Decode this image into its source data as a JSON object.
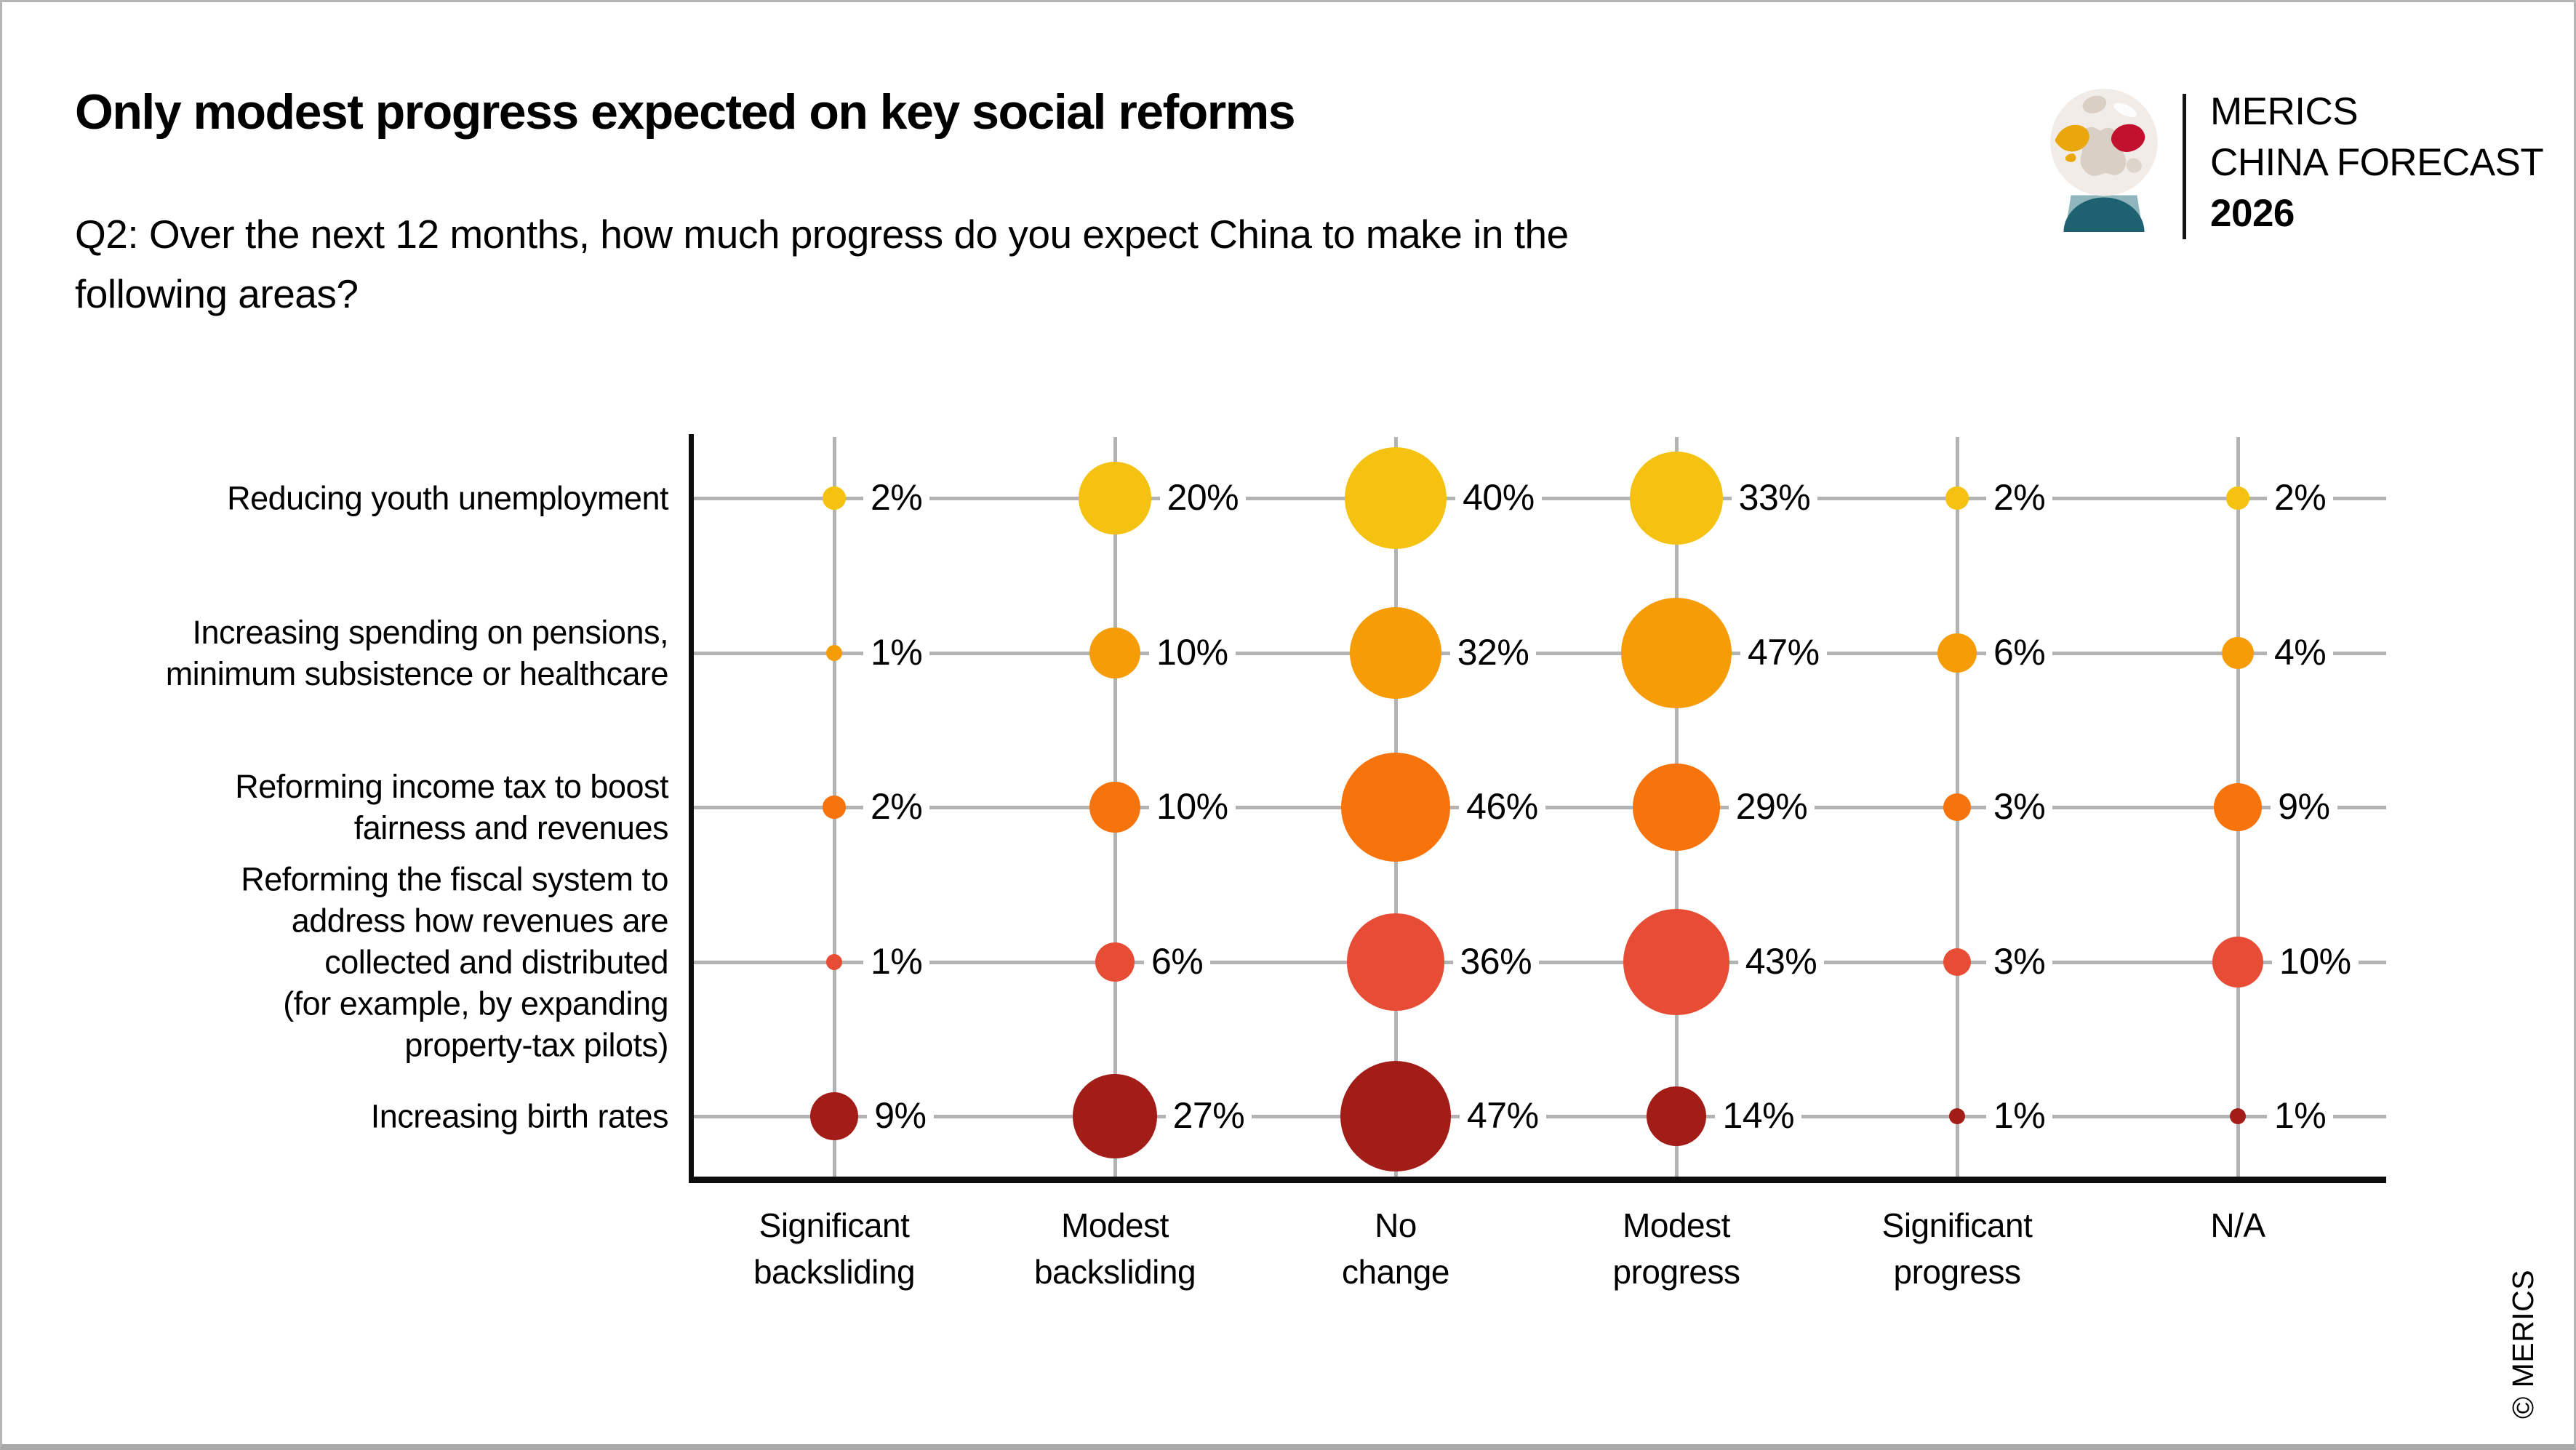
{
  "header": {
    "title": "Only modest progress expected on key social reforms",
    "subtitle_line1": "Q2: Over the next 12 months, how much progress do you expect China to make in the",
    "subtitle_line2": "following areas?"
  },
  "logo": {
    "line1": "MERICS",
    "line2": "CHINA FORECAST",
    "line3": "2026",
    "europe_color": "#E9A70B",
    "china_color": "#C2112E",
    "base_light_teal": "#8FB6BD",
    "base_dark_teal": "#1E6170"
  },
  "footer": {
    "copyright": "© MERICS"
  },
  "chart_data": {
    "type": "bubble",
    "title": "Only modest progress expected on key social reforms",
    "value_unit": "%",
    "grid": "on",
    "bubble_area_proportional_to": "percentage value",
    "columns": [
      [
        "Significant",
        "backsliding"
      ],
      [
        "Modest",
        "backsliding"
      ],
      [
        "No",
        "change"
      ],
      [
        "Modest",
        "progress"
      ],
      [
        "Significant",
        "progress"
      ],
      [
        "N/A"
      ]
    ],
    "rows": [
      {
        "label_lines": [
          "Reducing youth unemployment"
        ],
        "color": "#F5C211",
        "values": [
          2,
          20,
          40,
          33,
          2,
          2
        ]
      },
      {
        "label_lines": [
          "Increasing spending on pensions,",
          "minimum subsistence or healthcare"
        ],
        "color": "#F59C06",
        "values": [
          1,
          10,
          32,
          47,
          6,
          4
        ]
      },
      {
        "label_lines": [
          "Reforming income tax to boost",
          "fairness and revenues"
        ],
        "color": "#F7740C",
        "values": [
          2,
          10,
          46,
          29,
          3,
          9
        ]
      },
      {
        "label_lines": [
          "Reforming the fiscal system to",
          "address how revenues are",
          "collected and distributed",
          "(for example, by expanding",
          "property-tax pilots)"
        ],
        "color": "#E74C35",
        "values": [
          1,
          6,
          36,
          43,
          3,
          10
        ]
      },
      {
        "label_lines": [
          "Increasing birth rates"
        ],
        "color": "#A21C18",
        "values": [
          9,
          27,
          47,
          14,
          1,
          1
        ]
      }
    ]
  }
}
